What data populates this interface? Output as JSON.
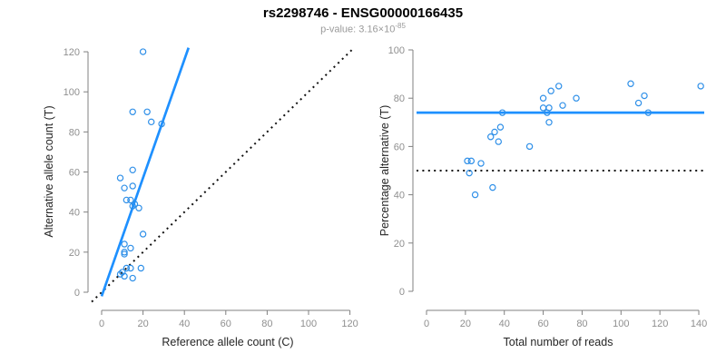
{
  "header": {
    "title": "rs2298746 - ENSG00000166435",
    "subtitle_prefix": "p-value: 3.16×10",
    "subtitle_exponent": "-85"
  },
  "colors": {
    "accent_blue": "#1E90FF",
    "point_blue": "#2E8FE8",
    "reference_black": "#111111",
    "axis_gray": "#808080",
    "tick_label_gray": "#8f8f8f",
    "axis_title_dark": "#262626"
  },
  "chart_data": [
    {
      "type": "scatter",
      "panel": "left",
      "xlabel": "Reference allele count (C)",
      "ylabel": "Alternative allele count (T)",
      "xlim": [
        0,
        120
      ],
      "ylim": [
        0,
        120
      ],
      "xticks": [
        0,
        20,
        40,
        60,
        80,
        100,
        120
      ],
      "yticks": [
        0,
        20,
        40,
        60,
        80,
        100,
        120
      ],
      "grid": false,
      "points": [
        [
          20,
          120
        ],
        [
          15,
          90
        ],
        [
          22,
          90
        ],
        [
          24,
          85
        ],
        [
          29,
          84
        ],
        [
          15,
          61
        ],
        [
          9,
          57
        ],
        [
          11,
          52
        ],
        [
          15,
          53
        ],
        [
          12,
          46
        ],
        [
          14,
          46
        ],
        [
          16,
          44
        ],
        [
          15,
          43
        ],
        [
          18,
          42
        ],
        [
          20,
          29
        ],
        [
          11,
          24
        ],
        [
          14,
          22
        ],
        [
          11,
          20
        ],
        [
          11,
          19
        ],
        [
          12,
          12
        ],
        [
          14,
          12
        ],
        [
          19,
          12
        ],
        [
          9,
          9
        ],
        [
          10,
          10
        ],
        [
          11,
          8
        ],
        [
          15,
          7
        ]
      ],
      "fit_line": {
        "type": "segment",
        "from": [
          0,
          -2
        ],
        "to": [
          42,
          122
        ]
      },
      "reference_line": {
        "type": "identity",
        "style": "dotted",
        "from": [
          -4.8,
          -4.8
        ],
        "to": [
          121,
          121
        ]
      }
    },
    {
      "type": "scatter",
      "panel": "right",
      "xlabel": "Total number of reads",
      "ylabel": "Percentage alternative (T)",
      "xlim": [
        0,
        140
      ],
      "ylim": [
        0,
        100
      ],
      "xticks": [
        0,
        20,
        40,
        60,
        80,
        100,
        120,
        140
      ],
      "yticks": [
        0,
        20,
        40,
        60,
        80,
        100
      ],
      "grid": false,
      "points": [
        [
          39,
          74
        ],
        [
          60,
          76
        ],
        [
          60,
          80
        ],
        [
          63,
          76
        ],
        [
          64,
          83
        ],
        [
          68,
          85
        ],
        [
          70,
          77
        ],
        [
          62,
          74
        ],
        [
          63,
          70
        ],
        [
          77,
          80
        ],
        [
          105,
          86
        ],
        [
          109,
          78
        ],
        [
          112,
          81
        ],
        [
          114,
          74
        ],
        [
          141,
          85
        ],
        [
          38,
          68
        ],
        [
          33,
          64
        ],
        [
          35,
          66
        ],
        [
          37,
          62
        ],
        [
          53,
          60
        ],
        [
          21,
          54
        ],
        [
          23,
          54
        ],
        [
          28,
          53
        ],
        [
          22,
          49
        ],
        [
          34,
          43
        ],
        [
          25,
          40
        ]
      ],
      "fit_line": {
        "type": "hline",
        "y": 74
      },
      "reference_line": {
        "type": "hline",
        "y": 50,
        "style": "dotted"
      }
    }
  ]
}
